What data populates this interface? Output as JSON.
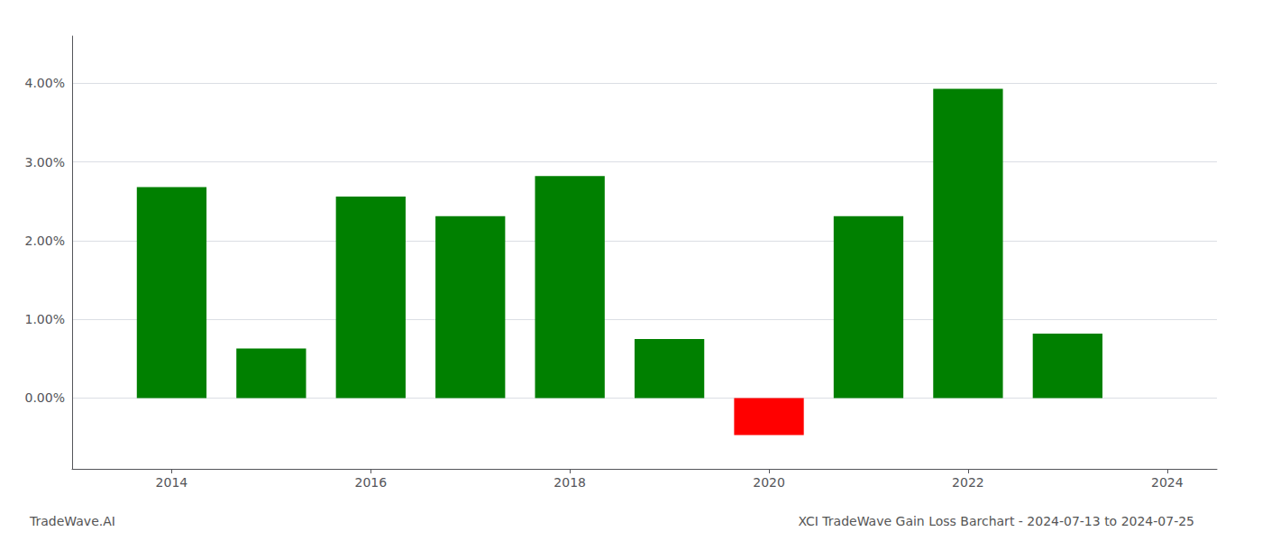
{
  "chart_data": {
    "type": "bar",
    "title": "XCI TradeWave Gain Loss Barchart - 2024-07-13 to 2024-07-25",
    "annotations": [
      "TradeWave.AI"
    ],
    "x": [
      2014,
      2015,
      2016,
      2017,
      2018,
      2019,
      2020,
      2021,
      2022,
      2023
    ],
    "values": [
      0.0268,
      0.0063,
      0.0256,
      0.0231,
      0.0282,
      0.0075,
      -0.0047,
      0.0231,
      0.0393,
      0.0082
    ],
    "colors": [
      "#008000",
      "#008000",
      "#008000",
      "#008000",
      "#008000",
      "#008000",
      "#ff0000",
      "#008000",
      "#008000",
      "#008000"
    ],
    "xlim": [
      2013,
      2024.5
    ],
    "xticks": [
      2014,
      2016,
      2018,
      2020,
      2022,
      2024
    ],
    "ylim": [
      -0.009,
      0.046
    ],
    "yticks": [
      {
        "value": 0.0,
        "label": "0.00%"
      },
      {
        "value": 0.01,
        "label": "1.00%"
      },
      {
        "value": 0.02,
        "label": "2.00%"
      },
      {
        "value": 0.03,
        "label": "3.00%"
      },
      {
        "value": 0.04,
        "label": "4.00%"
      }
    ],
    "grid": true
  }
}
